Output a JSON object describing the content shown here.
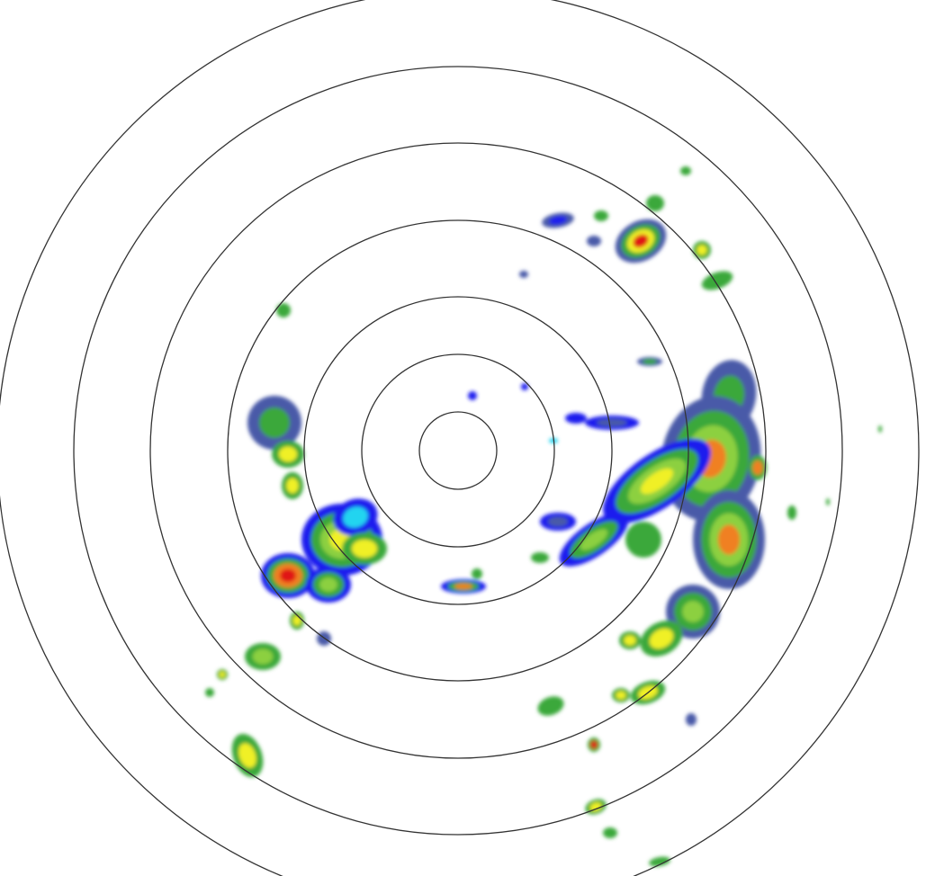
{
  "radar": {
    "range_ring_count": 7,
    "ring_color": "#333333",
    "background_color": "#ffffff",
    "reflectivity_palette": {
      "very_light": "#22d4f0",
      "light": "#1a1aee",
      "weak": "#4a5aa8",
      "moderate": "#3aa83a",
      "moderate_strong": "#8cd040",
      "strong": "#f0f028",
      "heavy": "#f08020",
      "intense": "#e01818"
    }
  }
}
